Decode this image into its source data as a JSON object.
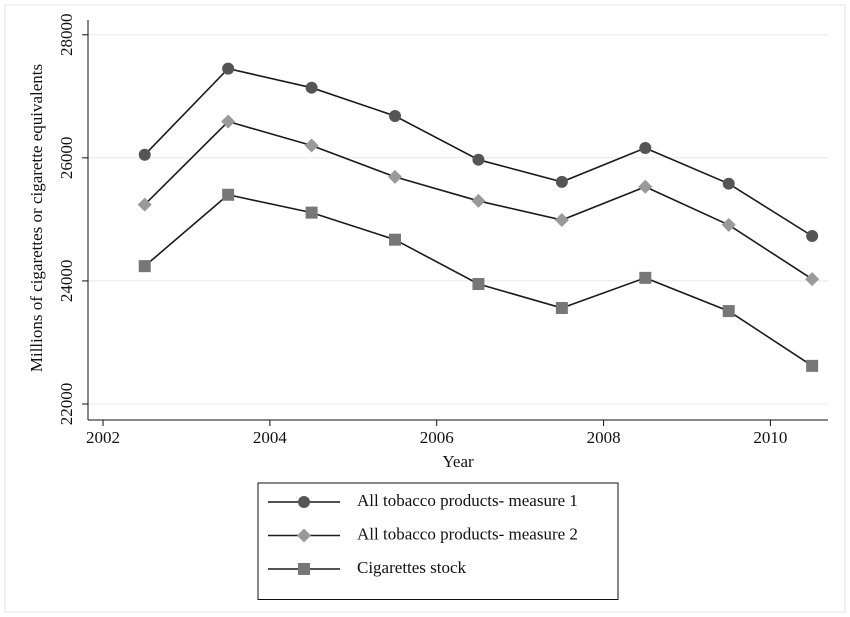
{
  "chart_data": {
    "type": "line",
    "y_axis_label": "Millions of cigarettes or cigarette equivalents",
    "x_axis_label": "Year",
    "x": [
      2002.5,
      2003.5,
      2004.5,
      2005.5,
      2006.5,
      2007.5,
      2008.5,
      2009.5,
      2010.5
    ],
    "series": [
      {
        "name": "All tobacco products- measure 1",
        "color": "#555555",
        "marker": "circle",
        "values": [
          26050,
          27450,
          27140,
          26680,
          25970,
          25610,
          26160,
          25580,
          24730
        ]
      },
      {
        "name": "All tobacco products- measure 2",
        "color": "#999999",
        "marker": "diamond",
        "values": [
          25240,
          26590,
          26200,
          25690,
          25300,
          24990,
          25530,
          24910,
          24030
        ]
      },
      {
        "name": "Cigarettes stock",
        "color": "#777777",
        "marker": "square",
        "values": [
          24240,
          25400,
          25110,
          24670,
          23950,
          23560,
          24050,
          23510,
          22620
        ]
      }
    ],
    "line_color": "#1a1a1a",
    "xlim": [
      2001.82,
      2010.69
    ],
    "xticks": [
      2002,
      2004,
      2006,
      2008,
      2010
    ],
    "ylim": [
      21740,
      28240
    ],
    "yticks": [
      22000,
      24000,
      26000,
      28000
    ],
    "grid": true,
    "legend": "bottom"
  }
}
